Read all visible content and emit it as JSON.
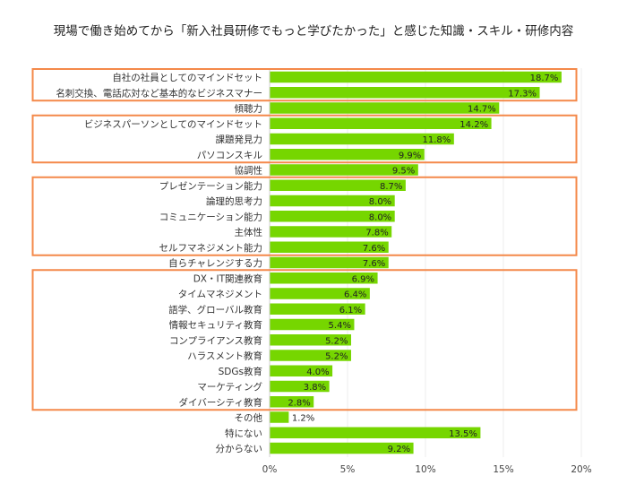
{
  "chart_data": {
    "type": "bar",
    "orientation": "horizontal",
    "title": "現場で働き始めてから「新入社員研修でもっと学びたかった」と感じた知識・スキル・研修内容",
    "xlabel": "",
    "ylabel": "",
    "xlim": [
      0,
      20
    ],
    "x_ticks": [
      "0%",
      "5%",
      "10%",
      "15%",
      "20%"
    ],
    "grid": "vertical",
    "bar_color": "#76d600",
    "highlight_box_color": "#f4894a",
    "categories": [
      "自社の社員としてのマインドセット",
      "名刺交換、電話応対など基本的なビジネスマナー",
      "傾聴力",
      "ビジネスパーソンとしてのマインドセット",
      "課題発見力",
      "パソコンスキル",
      "協調性",
      "プレゼンテーション能力",
      "論理的思考力",
      "コミュニケーション能力",
      "主体性",
      "セルフマネジメント能力",
      "自らチャレンジする力",
      "DX・IT関連教育",
      "タイムマネジメント",
      "語学、グローバル教育",
      "情報セキュリティ教育",
      "コンプライアンス教育",
      "ハラスメント教育",
      "SDGs教育",
      "マーケティング",
      "ダイバーシティ教育",
      "その他",
      "特にない",
      "分からない"
    ],
    "values": [
      18.7,
      17.3,
      14.7,
      14.2,
      11.8,
      9.9,
      9.5,
      8.7,
      8.0,
      8.0,
      7.8,
      7.6,
      7.6,
      6.9,
      6.4,
      6.1,
      5.4,
      5.2,
      5.2,
      4.0,
      3.8,
      2.8,
      1.2,
      13.5,
      9.2
    ],
    "value_labels": [
      "18.7%",
      "17.3%",
      "14.7%",
      "14.2%",
      "11.8%",
      "9.9%",
      "9.5%",
      "8.7%",
      "8.0%",
      "8.0%",
      "7.8%",
      "7.6%",
      "7.6%",
      "6.9%",
      "6.4%",
      "6.1%",
      "5.4%",
      "5.2%",
      "5.2%",
      "4.0%",
      "3.8%",
      "2.8%",
      "1.2%",
      "13.5%",
      "9.2%"
    ],
    "highlight_groups": [
      [
        0,
        1
      ],
      [
        3,
        5
      ],
      [
        7,
        11
      ],
      [
        13,
        21
      ]
    ]
  }
}
